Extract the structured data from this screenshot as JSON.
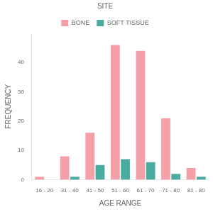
{
  "chart_data": {
    "type": "bar",
    "title": "SITE",
    "categories": [
      "16 - 20",
      "31 - 40",
      "41 - 50",
      "51 - 60",
      "61 - 70",
      "71 - 80",
      "81 - 80"
    ],
    "series": [
      {
        "name": "BONE",
        "color": "#f4a0a8",
        "values": [
          1,
          8,
          16,
          46,
          44,
          21,
          4
        ]
      },
      {
        "name": "SOFT TISSUE",
        "color": "#4aaba0",
        "values": [
          0,
          1,
          5,
          7,
          6,
          2,
          1
        ]
      }
    ],
    "xlabel": "AGE RANGE",
    "ylabel": "FREQUENCY",
    "ylim": [
      0,
      50
    ],
    "yticks": [
      0,
      10,
      20,
      30,
      40
    ],
    "grid": false,
    "legend": "top"
  }
}
